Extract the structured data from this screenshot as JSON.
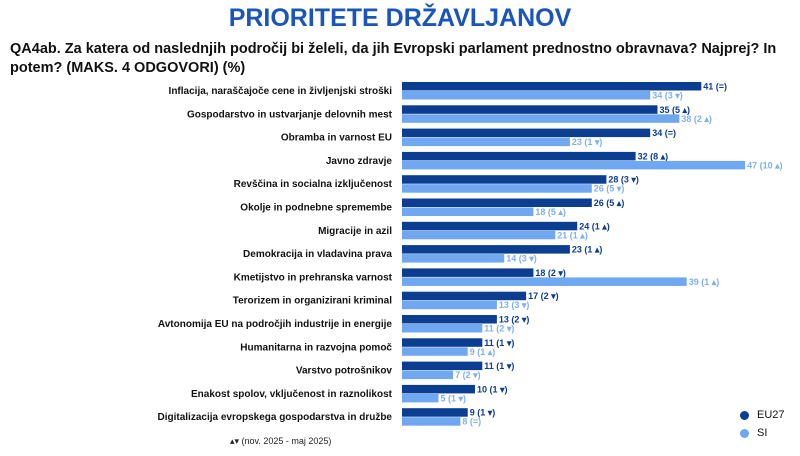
{
  "title": "PRIORITETE DRŽAVLJANOV",
  "question": "QA4ab. Za katera od naslednjih področij bi želeli, da jih Evropski parlament prednostno obravnava? Najprej? In potem? (MAKS. 4 ODGOVORI) (%)",
  "footnote": "▴▾ (nov. 2025 - maj 2025)",
  "colors": {
    "eu27": "#0b3d91",
    "si": "#6fa8f0"
  },
  "chart_data": {
    "type": "bar",
    "orientation": "horizontal",
    "categories": [
      "Inflacija, naraščajoče cene in življenjski stroški",
      "Gospodarstvo in ustvarjanje delovnih mest",
      "Obramba in varnost EU",
      "Javno zdravje",
      "Revščina in socialna izključenost",
      "Okolje in podnebne spremembe",
      "Migracije in azil",
      "Demokracija in vladavina prava",
      "Kmetijstvo in prehranska varnost",
      "Terorizem in organizirani kriminal",
      "Avtonomija EU na področjih industrije in energije",
      "Humanitarna in razvojna pomoč",
      "Varstvo potrošnikov",
      "Enakost spolov, vključenost in raznolikost",
      "Digitalizacija evropskega gospodarstva in družbe"
    ],
    "series": [
      {
        "name": "EU27",
        "values": [
          41,
          35,
          34,
          32,
          28,
          26,
          24,
          23,
          18,
          17,
          13,
          11,
          11,
          10,
          9
        ],
        "labels": [
          "41 (=)",
          "35 (5 ▴)",
          "34 (=)",
          "32 (8 ▴)",
          "28 (3 ▾)",
          "26 (5 ▴)",
          "24 (1 ▴)",
          "23 (1 ▴)",
          "18 (2 ▾)",
          "17 (2 ▾)",
          "13 (2 ▾)",
          "11 (1 ▾)",
          "11 (1 ▾)",
          "10 (1 ▾)",
          "9 (1 ▾)"
        ]
      },
      {
        "name": "SI",
        "values": [
          34,
          38,
          23,
          47,
          26,
          18,
          21,
          14,
          39,
          13,
          11,
          9,
          7,
          5,
          8
        ],
        "labels": [
          "34 (3 ▾)",
          "38 (2 ▴)",
          "23 (1 ▾)",
          "47 (10 ▴)",
          "26 (5 ▾)",
          "18 (5 ▴)",
          "21 (1 ▴)",
          "14 (3 ▾)",
          "39 (1 ▴)",
          "13 (3 ▾)",
          "11 (2 ▾)",
          "9 (1 ▴)",
          "7 (2 ▾)",
          "5 (1 ▾)",
          "8 (=)"
        ]
      }
    ]
  }
}
